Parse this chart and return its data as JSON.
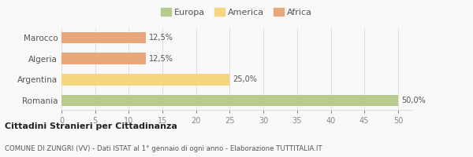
{
  "categories": [
    "Marocco",
    "Algeria",
    "Argentina",
    "Romania"
  ],
  "values": [
    12.5,
    12.5,
    25.0,
    50.0
  ],
  "bar_colors": [
    "#e8a87c",
    "#e8a87c",
    "#f5d57e",
    "#b5cc8e"
  ],
  "labels": [
    "12,5%",
    "12,5%",
    "25,0%",
    "50,0%"
  ],
  "legend": [
    {
      "label": "Europa",
      "color": "#b5cc8e"
    },
    {
      "label": "America",
      "color": "#f5d57e"
    },
    {
      "label": "Africa",
      "color": "#e8a87c"
    }
  ],
  "xlim": [
    0,
    52
  ],
  "xticks": [
    0,
    5,
    10,
    15,
    20,
    25,
    30,
    35,
    40,
    45,
    50
  ],
  "title_bold": "Cittadini Stranieri per Cittadinanza",
  "subtitle": "COMUNE DI ZUNGRI (VV) - Dati ISTAT al 1° gennaio di ogni anno - Elaborazione TUTTITALIA.IT",
  "background_color": "#f9f9f9",
  "grid_color": "#dddddd"
}
